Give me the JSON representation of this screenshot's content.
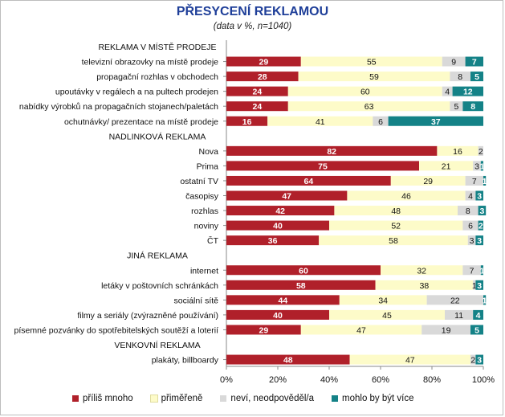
{
  "chart_data": {
    "type": "bar",
    "stacked": true,
    "orientation": "horizontal",
    "title": "PŘESYCENÍ REKLAMOU",
    "subtitle": "(data v %, n=1040)",
    "x_ticks": [
      "0%",
      "20%",
      "40%",
      "60%",
      "80%",
      "100%"
    ],
    "xlim": [
      0,
      100
    ],
    "legend_position": "bottom",
    "series": [
      {
        "name": "příliš mnoho",
        "color": "#b0202a"
      },
      {
        "name": "přiměřeně",
        "color": "#fdfbc9"
      },
      {
        "name": "neví, neodpověděl/a",
        "color": "#d9d9d9"
      },
      {
        "name": "mohlo by být více",
        "color": "#148287"
      }
    ],
    "rows": [
      {
        "label": "REKLAMA V MÍSTĚ PRODEJE",
        "header": true
      },
      {
        "label": "televizní obrazovky na místě prodeje",
        "values": [
          29,
          55,
          9,
          7
        ]
      },
      {
        "label": "propagační rozhlas v obchodech",
        "values": [
          28,
          59,
          8,
          5
        ]
      },
      {
        "label": "upoutávky v regálech a na pultech prodejen",
        "values": [
          24,
          60,
          4,
          12
        ]
      },
      {
        "label": "nabídky výrobků na propagačních stojanech/paletách",
        "values": [
          24,
          63,
          5,
          8
        ]
      },
      {
        "label": "ochutnávky/ prezentace na místě prodeje",
        "values": [
          16,
          41,
          6,
          37
        ]
      },
      {
        "label": "NADLINKOVÁ REKLAMA",
        "header": true
      },
      {
        "label": "Nova",
        "values": [
          82,
          16,
          2,
          0
        ]
      },
      {
        "label": "Prima",
        "values": [
          75,
          21,
          3,
          1
        ]
      },
      {
        "label": "ostatní TV",
        "values": [
          64,
          29,
          7,
          1
        ]
      },
      {
        "label": "časopisy",
        "values": [
          47,
          46,
          4,
          3
        ]
      },
      {
        "label": "rozhlas",
        "values": [
          42,
          48,
          8,
          3
        ]
      },
      {
        "label": "noviny",
        "values": [
          40,
          52,
          6,
          2
        ]
      },
      {
        "label": "ČT",
        "values": [
          36,
          58,
          3,
          3
        ]
      },
      {
        "label": "JINÁ REKLAMA",
        "header": true
      },
      {
        "label": "internet",
        "values": [
          60,
          32,
          7,
          1
        ]
      },
      {
        "label": "letáky v poštovních schránkách",
        "values": [
          58,
          38,
          1,
          3
        ]
      },
      {
        "label": "sociální sítě",
        "values": [
          44,
          34,
          22,
          1
        ]
      },
      {
        "label": "filmy a seriály (zvýrazněné používání)",
        "values": [
          40,
          45,
          11,
          4
        ]
      },
      {
        "label": "písemné pozvánky do spotřebitelských soutěží a loterií",
        "values": [
          29,
          47,
          19,
          5
        ]
      },
      {
        "label": "VENKOVNÍ REKLAMA",
        "header": true
      },
      {
        "label": "plakáty, billboardy",
        "values": [
          48,
          47,
          2,
          3
        ]
      }
    ]
  }
}
